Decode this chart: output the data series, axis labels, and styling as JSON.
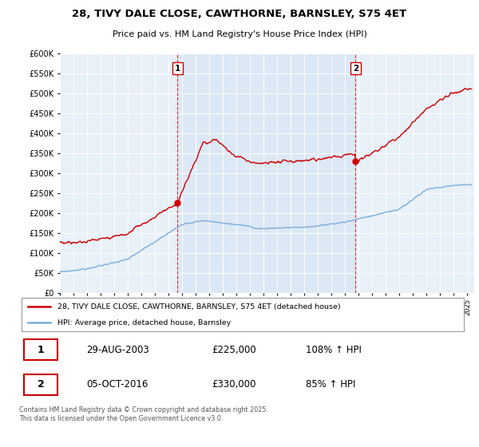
{
  "title": "28, TIVY DALE CLOSE, CAWTHORNE, BARNSLEY, S75 4ET",
  "subtitle": "Price paid vs. HM Land Registry's House Price Index (HPI)",
  "legend_entry1": "28, TIVY DALE CLOSE, CAWTHORNE, BARNSLEY, S75 4ET (detached house)",
  "legend_entry2": "HPI: Average price, detached house, Barnsley",
  "sale1_label": "1",
  "sale1_date": "29-AUG-2003",
  "sale1_price": "£225,000",
  "sale1_hpi": "108% ↑ HPI",
  "sale2_label": "2",
  "sale2_date": "05-OCT-2016",
  "sale2_price": "£330,000",
  "sale2_hpi": "85% ↑ HPI",
  "footnote": "Contains HM Land Registry data © Crown copyright and database right 2025.\nThis data is licensed under the Open Government Licence v3.0.",
  "sale1_year": 2003.66,
  "sale2_year": 2016.76,
  "sale1_value": 225000,
  "sale2_value": 330000,
  "hpi_color": "#7aaddc",
  "price_color": "#cc0000",
  "vline_color": "#cc0000",
  "chart_bg": "#e8f0f8",
  "between_bg": "#dce8f5",
  "ylim_max": 600000,
  "xmin": 1995,
  "xmax": 2025.5
}
